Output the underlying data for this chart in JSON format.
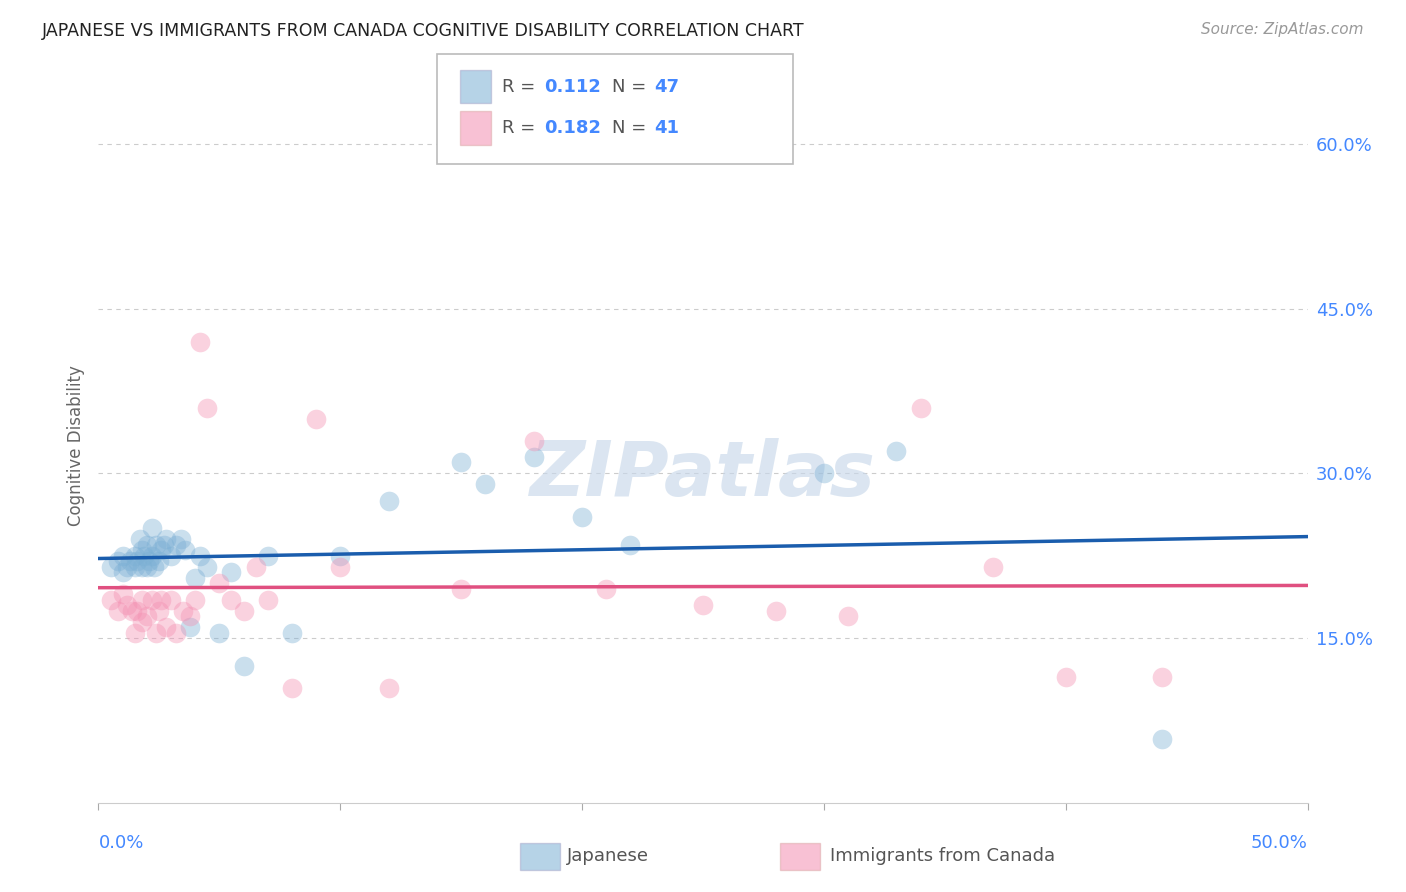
{
  "title": "JAPANESE VS IMMIGRANTS FROM CANADA COGNITIVE DISABILITY CORRELATION CHART",
  "source": "Source: ZipAtlas.com",
  "ylabel": "Cognitive Disability",
  "xlim": [
    0.0,
    0.5
  ],
  "ylim": [
    0.0,
    0.65
  ],
  "yticks": [
    0.15,
    0.3,
    0.45,
    0.6
  ],
  "ytick_labels": [
    "15.0%",
    "30.0%",
    "45.0%",
    "60.0%"
  ],
  "blue_color": "#7BAFD4",
  "pink_color": "#F48FB1",
  "line_blue": "#1A5DAD",
  "line_pink": "#E05080",
  "axis_color": "#4488FF",
  "japanese_x": [
    0.005,
    0.008,
    0.01,
    0.01,
    0.012,
    0.013,
    0.015,
    0.015,
    0.016,
    0.017,
    0.018,
    0.018,
    0.019,
    0.02,
    0.02,
    0.021,
    0.022,
    0.022,
    0.023,
    0.024,
    0.025,
    0.026,
    0.027,
    0.028,
    0.03,
    0.032,
    0.034,
    0.036,
    0.038,
    0.04,
    0.042,
    0.045,
    0.05,
    0.055,
    0.06,
    0.07,
    0.08,
    0.1,
    0.12,
    0.15,
    0.16,
    0.18,
    0.2,
    0.22,
    0.3,
    0.33,
    0.44
  ],
  "japanese_y": [
    0.215,
    0.22,
    0.21,
    0.225,
    0.215,
    0.22,
    0.215,
    0.225,
    0.22,
    0.24,
    0.215,
    0.23,
    0.225,
    0.215,
    0.235,
    0.22,
    0.225,
    0.25,
    0.215,
    0.235,
    0.22,
    0.23,
    0.235,
    0.24,
    0.225,
    0.235,
    0.24,
    0.23,
    0.16,
    0.205,
    0.225,
    0.215,
    0.155,
    0.21,
    0.125,
    0.225,
    0.155,
    0.225,
    0.275,
    0.31,
    0.29,
    0.315,
    0.26,
    0.235,
    0.3,
    0.32,
    0.058
  ],
  "canada_x": [
    0.005,
    0.008,
    0.01,
    0.012,
    0.014,
    0.015,
    0.016,
    0.018,
    0.018,
    0.02,
    0.022,
    0.024,
    0.025,
    0.026,
    0.028,
    0.03,
    0.032,
    0.035,
    0.038,
    0.04,
    0.042,
    0.045,
    0.05,
    0.055,
    0.06,
    0.065,
    0.07,
    0.08,
    0.09,
    0.1,
    0.12,
    0.15,
    0.18,
    0.21,
    0.25,
    0.28,
    0.31,
    0.34,
    0.37,
    0.4,
    0.44
  ],
  "canada_y": [
    0.185,
    0.175,
    0.19,
    0.18,
    0.175,
    0.155,
    0.175,
    0.165,
    0.185,
    0.17,
    0.185,
    0.155,
    0.175,
    0.185,
    0.16,
    0.185,
    0.155,
    0.175,
    0.17,
    0.185,
    0.42,
    0.36,
    0.2,
    0.185,
    0.175,
    0.215,
    0.185,
    0.105,
    0.35,
    0.215,
    0.105,
    0.195,
    0.33,
    0.195,
    0.18,
    0.175,
    0.17,
    0.36,
    0.215,
    0.115,
    0.115
  ]
}
